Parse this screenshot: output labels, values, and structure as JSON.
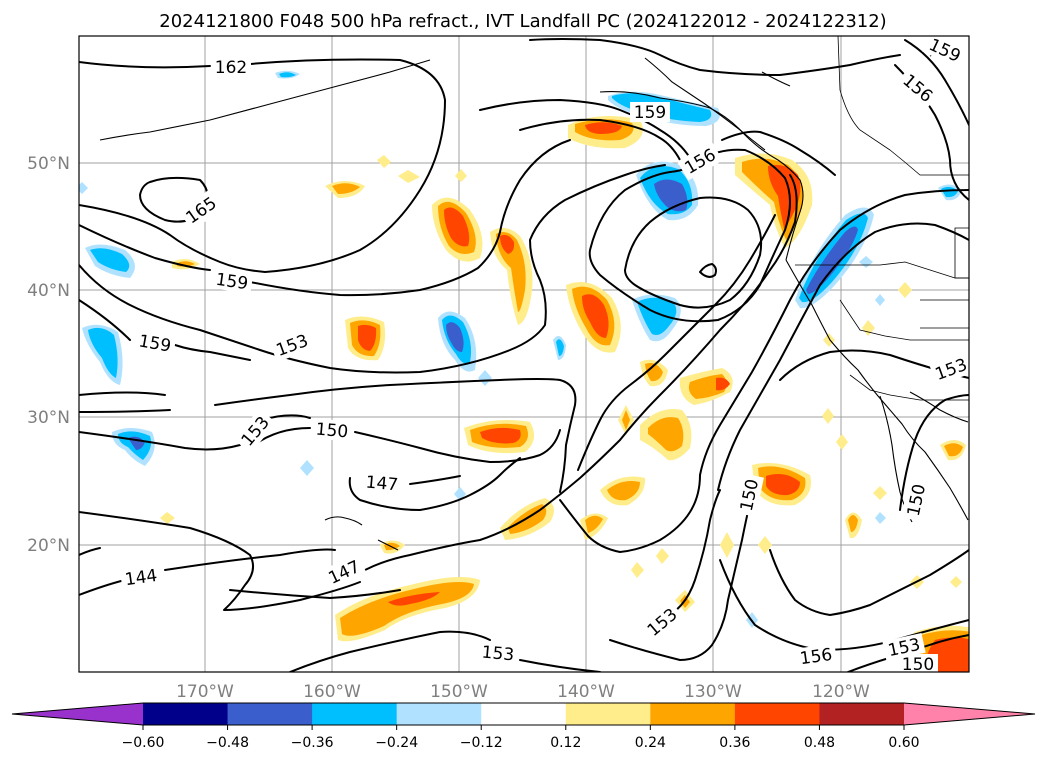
{
  "title": "2024121800 F048 500 hPa refract., IVT Landfall PC (2024122012 - 2024122312)",
  "map": {
    "lat_labels": [
      "50°N",
      "40°N",
      "30°N",
      "20°N"
    ],
    "lon_labels": [
      "170°W",
      "160°W",
      "150°W",
      "140°W",
      "130°W",
      "120°W"
    ]
  },
  "contour_labels": [
    "162",
    "159",
    "165",
    "159",
    "159",
    "156",
    "153",
    "153",
    "150",
    "147",
    "147",
    "144",
    "153",
    "153",
    "150",
    "150",
    "156",
    "153",
    "150",
    "156",
    "159",
    "153"
  ],
  "colorbar": {
    "tick_labels": [
      "−0.60",
      "−0.48",
      "−0.36",
      "−0.24",
      "−0.12",
      "0.12",
      "0.24",
      "0.36",
      "0.48",
      "0.60"
    ],
    "colors": [
      "#9932cc",
      "#00008b",
      "#3a5fcd",
      "#00bfff",
      "#b0e2ff",
      "#ffffff",
      "#ffec8b",
      "#ffa500",
      "#ff4500",
      "#b22222",
      "#ff82ab"
    ]
  }
}
